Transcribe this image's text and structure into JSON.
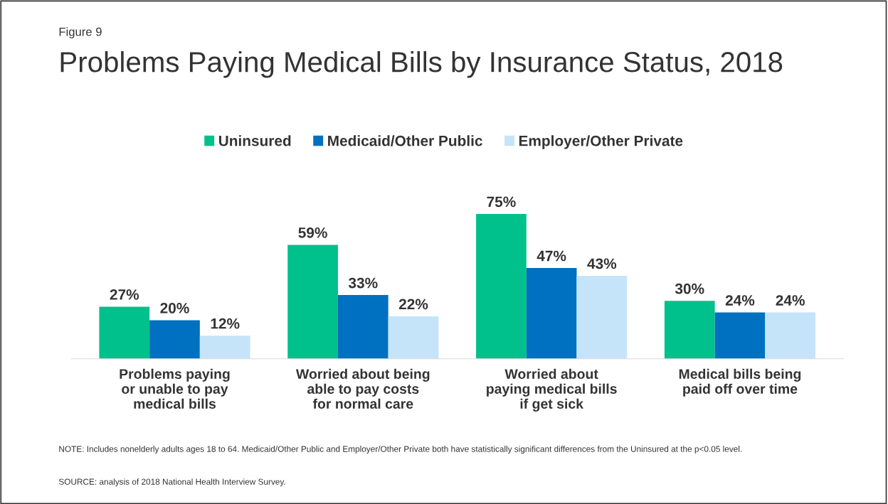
{
  "chart_data": {
    "type": "bar",
    "title": "Problems Paying Medical Bills by Insurance Status, 2018",
    "subtitle": "Figure 9",
    "categories": [
      "Problems paying\nor unable to pay\nmedical bills",
      "Worried about being\nable to pay costs\nfor normal care",
      "Worried about\npaying medical bills\nif get sick",
      "Medical bills being\npaid off over time"
    ],
    "series": [
      {
        "name": "Uninsured",
        "color": "#00c08b",
        "values": [
          27,
          59,
          75,
          30
        ],
        "value_labels": [
          "27%",
          "59%",
          "75%",
          "30%"
        ]
      },
      {
        "name": "Medicaid/Other Public",
        "color": "#0070c0",
        "values": [
          20,
          33,
          47,
          24
        ],
        "value_labels": [
          "20%",
          "33%",
          "47%",
          "24%"
        ]
      },
      {
        "name": "Employer/Other Private",
        "color": "#c5e4fa",
        "values": [
          12,
          22,
          43,
          24
        ],
        "value_labels": [
          "12%",
          "22%",
          "43%",
          "24%"
        ]
      }
    ],
    "legend": "top",
    "annotations": [
      "NOTE: Includes nonelderly adults ages 18 to 64. Medicaid/Other Public and Employer/Other Private both have statistically significant differences from the Uninsured at the p<0.05 level.",
      "SOURCE: analysis of 2018 National Health Interview Survey."
    ]
  }
}
